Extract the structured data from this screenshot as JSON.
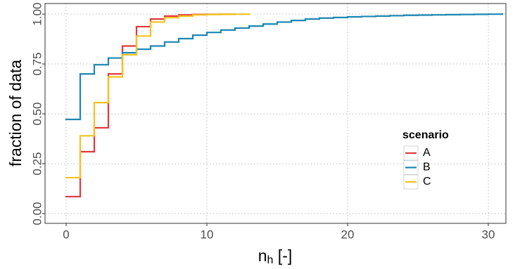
{
  "chart_data": {
    "type": "step",
    "x_label": {
      "text": "n",
      "subscript": "h",
      "suffix": " [-]"
    },
    "y_label": "fraction of data",
    "legend_title": "scenario",
    "series": [
      {
        "name": "A",
        "color": "#e0393e",
        "x": [
          0,
          1,
          2,
          3,
          4,
          5,
          6,
          7,
          8,
          9,
          10,
          11,
          12
        ],
        "values": [
          0.085,
          0.31,
          0.43,
          0.7,
          0.84,
          0.937,
          0.975,
          0.99,
          0.996,
          0.998,
          0.999,
          0.9995,
          1.0
        ]
      },
      {
        "name": "B",
        "color": "#1a87b2",
        "x": [
          0,
          1,
          2,
          3,
          4,
          5,
          6,
          7,
          8,
          9,
          10,
          11,
          12,
          13,
          14,
          15,
          16,
          17,
          18,
          19,
          20,
          21,
          22,
          23,
          24,
          25,
          26,
          27,
          28,
          29,
          30,
          31
        ],
        "values": [
          0.472,
          0.7,
          0.746,
          0.78,
          0.806,
          0.824,
          0.84,
          0.86,
          0.877,
          0.894,
          0.908,
          0.92,
          0.93,
          0.94,
          0.95,
          0.96,
          0.968,
          0.975,
          0.98,
          0.983,
          0.986,
          0.988,
          0.99,
          0.992,
          0.994,
          0.995,
          0.996,
          0.997,
          0.998,
          0.999,
          0.9995,
          1.0
        ]
      },
      {
        "name": "C",
        "color": "#f2c31f",
        "x": [
          0,
          1,
          2,
          3,
          4,
          5,
          6,
          7,
          8,
          9,
          10,
          11,
          12,
          13
        ],
        "values": [
          0.18,
          0.39,
          0.556,
          0.685,
          0.796,
          0.89,
          0.96,
          0.982,
          0.99,
          0.996,
          0.998,
          0.999,
          0.9995,
          1.0
        ]
      }
    ],
    "xlim": [
      -1.5,
      31.25
    ],
    "ylim": [
      -0.049,
      1.053
    ],
    "xticks": [
      0,
      10,
      20,
      30
    ],
    "yticks": [
      {
        "value": 0,
        "label": "0.00"
      },
      {
        "value": 0.25,
        "label": "0.25"
      },
      {
        "value": 0.5,
        "label": "0.50"
      },
      {
        "value": 0.75,
        "label": "0.75"
      },
      {
        "value": 1,
        "label": "1.00"
      }
    ],
    "grid": true
  }
}
